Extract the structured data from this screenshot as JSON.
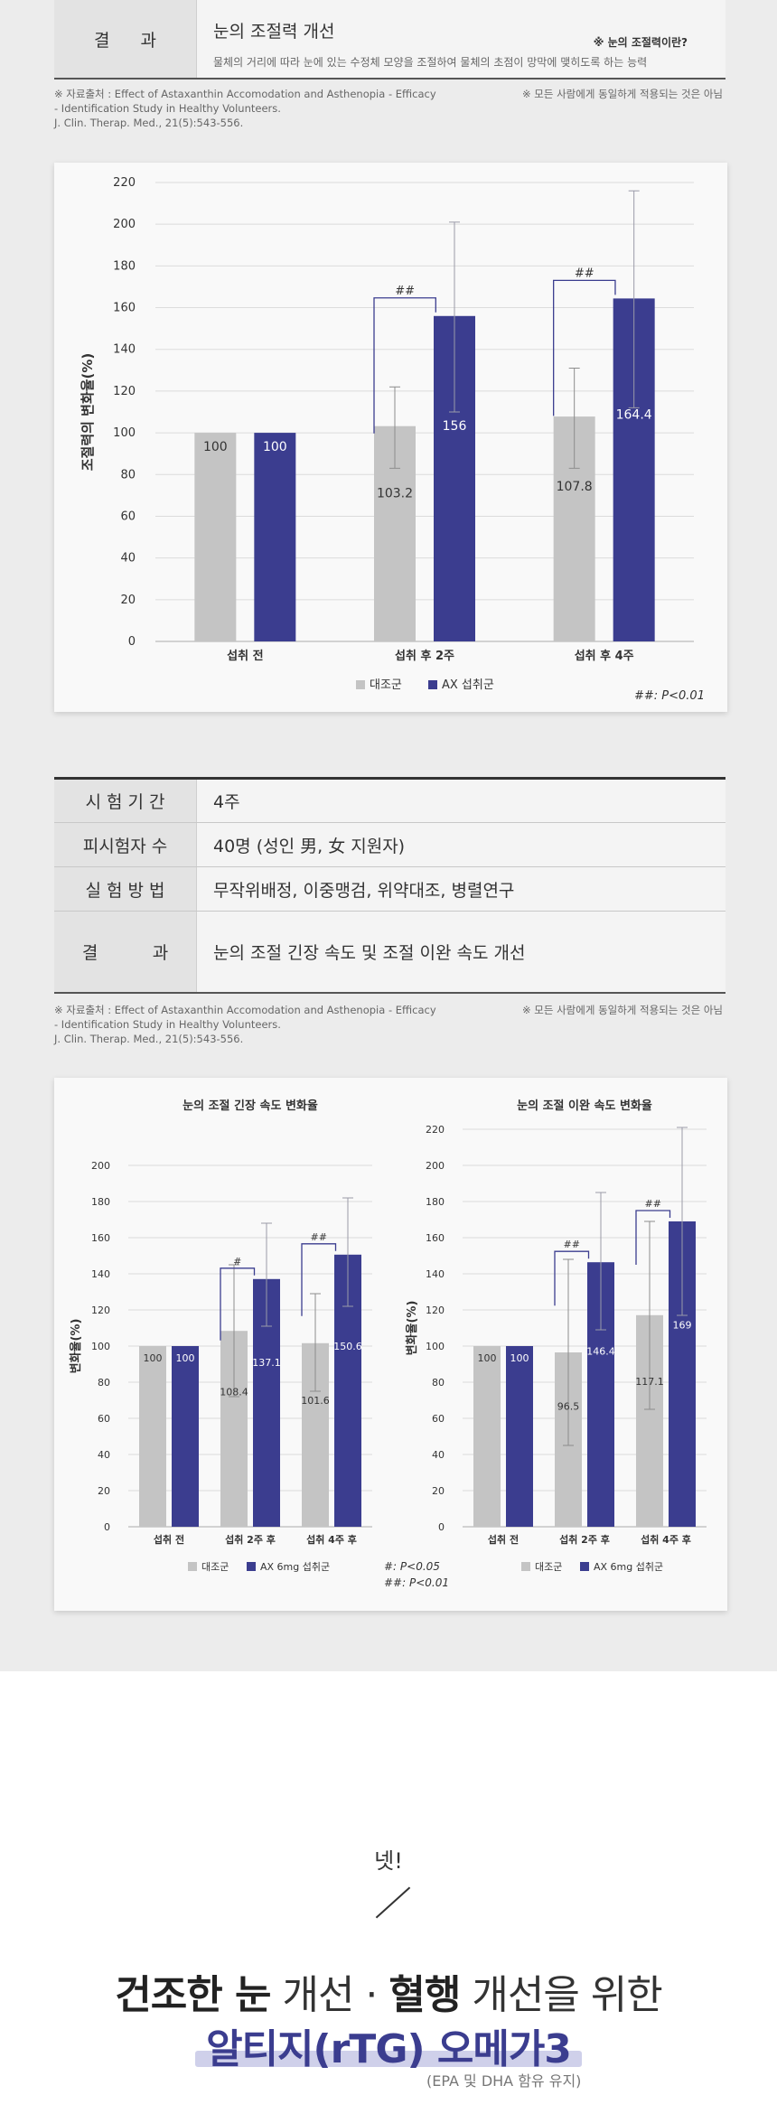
{
  "top_table": {
    "label": "결과",
    "value_title": "눈의 조절력 개선",
    "note_title": "※ 눈의 조절력이란?",
    "note_text": "물체의 거리에 따라 눈에 있는 수정체 모양을 조절하여 물체의 초점이 망막에 맺히도록 하는 능력"
  },
  "source1": {
    "line1": "※ 자료출처 : Effect of Astaxanthin Accomodation and Asthenopia - Efficacy",
    "line2": "- Identification Study in Healthy Volunteers.",
    "line3": "J. Clin. Therap. Med., 21(5):543-556.",
    "right": "※ 모든 사람에게 동일하게 적용되는 것은 아님"
  },
  "legend": {
    "control": "대조군",
    "ax": "AX 섭취군",
    "ax6": "AX 6mg 섭취군"
  },
  "colors": {
    "control": "#c4c4c4",
    "ax": "#3b3d8f",
    "bracket": "#3b3d8f"
  },
  "info_table": {
    "rows": [
      {
        "label": "시 험 기 간",
        "value": "4주"
      },
      {
        "label": "피시험자 수",
        "value": "40명 (성인 男, 女 지원자)"
      },
      {
        "label": "실 험 방 법",
        "value": "무작위배정, 이중맹검, 위약대조, 병렬연구"
      },
      {
        "label": "결          과",
        "value": "눈의 조절 긴장 속도 및 조절 이완 속도 개선"
      }
    ]
  },
  "source2": {
    "line1": "※ 자료출처 : Effect of Astaxanthin Accomodation and Asthenopia - Efficacy",
    "line2": "- Identification Study in Healthy Volunteers.",
    "line3": "J. Clin. Therap. Med., 21(5):543-556.",
    "right": "※ 모든 사람에게 동일하게 적용되는 것은 아님"
  },
  "chart_data": [
    {
      "type": "bar",
      "title": "",
      "ylabel": "조절력의 변화율(%)",
      "ylim": [
        0,
        220
      ],
      "yticks": [
        0,
        20,
        40,
        60,
        80,
        100,
        120,
        140,
        160,
        180,
        200,
        220
      ],
      "categories": [
        "섭취 전",
        "섭취 후 2주",
        "섭취 후 4주"
      ],
      "series": [
        {
          "name": "대조군",
          "values": [
            100,
            103.2,
            107.8
          ],
          "labels": [
            "100",
            "103.2",
            "107.8"
          ],
          "err_high": [
            100,
            122,
            131
          ],
          "err_low": [
            100,
            83,
            83
          ]
        },
        {
          "name": "AX 섭취군",
          "values": [
            100,
            156,
            164.4
          ],
          "labels": [
            "100",
            "156",
            "164.4"
          ],
          "err_high": [
            100,
            201,
            216
          ],
          "err_low": [
            100,
            110,
            112
          ]
        }
      ],
      "significance": [
        "",
        "##",
        "##"
      ],
      "footnotes": [
        "##: P<0.01"
      ],
      "legend_position": "bottom"
    },
    {
      "type": "bar",
      "title": "눈의 조절 긴장 속도 변화율",
      "ylabel": "변화율(%)",
      "ylim": [
        0,
        200
      ],
      "yticks": [
        0,
        20,
        40,
        60,
        80,
        100,
        120,
        140,
        160,
        180,
        200
      ],
      "categories": [
        "섭취 전",
        "섭취 2주 후",
        "섭취 4주 후"
      ],
      "series": [
        {
          "name": "대조군",
          "values": [
            100,
            108.4,
            101.6
          ],
          "labels": [
            "100",
            "108.4",
            "101.6"
          ],
          "err_high": [
            100,
            145,
            129
          ],
          "err_low": [
            100,
            72,
            75
          ]
        },
        {
          "name": "AX 6mg 섭취군",
          "values": [
            100,
            137.1,
            150.6
          ],
          "labels": [
            "100",
            "137.1",
            "150.6"
          ],
          "err_high": [
            100,
            168,
            182
          ],
          "err_low": [
            100,
            111,
            122
          ]
        }
      ],
      "significance": [
        "",
        "#",
        "##"
      ],
      "footnotes": [
        "#: P<0.05",
        "##: P<0.01"
      ],
      "legend_position": "bottom"
    },
    {
      "type": "bar",
      "title": "눈의 조절 이완 속도 변화율",
      "ylabel": "변화율(%)",
      "ylim": [
        0,
        220
      ],
      "yticks": [
        0,
        20,
        40,
        60,
        80,
        100,
        120,
        140,
        160,
        180,
        200,
        220
      ],
      "categories": [
        "섭취 전",
        "섭취 2주 후",
        "섭취 4주 후"
      ],
      "series": [
        {
          "name": "대조군",
          "values": [
            100,
            96.5,
            117.1
          ],
          "labels": [
            "100",
            "96.5",
            "117.1"
          ],
          "err_high": [
            100,
            148,
            169
          ],
          "err_low": [
            100,
            45,
            65
          ]
        },
        {
          "name": "AX 6mg 섭취군",
          "values": [
            100,
            146.4,
            169
          ],
          "labels": [
            "100",
            "146.4",
            "169"
          ],
          "err_high": [
            100,
            185,
            221
          ],
          "err_low": [
            100,
            109,
            117
          ]
        }
      ],
      "significance": [
        "",
        "##",
        "##"
      ],
      "footnotes": [],
      "legend_position": "bottom"
    }
  ],
  "bottom": {
    "number": "넷!",
    "headline_b1": "건조한 눈",
    "headline_t1": " 개선 · ",
    "headline_b2": "혈행",
    "headline_t2": " 개선을 위한",
    "product": "알티지(rTG) 오메가3",
    "note": "(EPA 및 DHA 함유 유지)"
  }
}
